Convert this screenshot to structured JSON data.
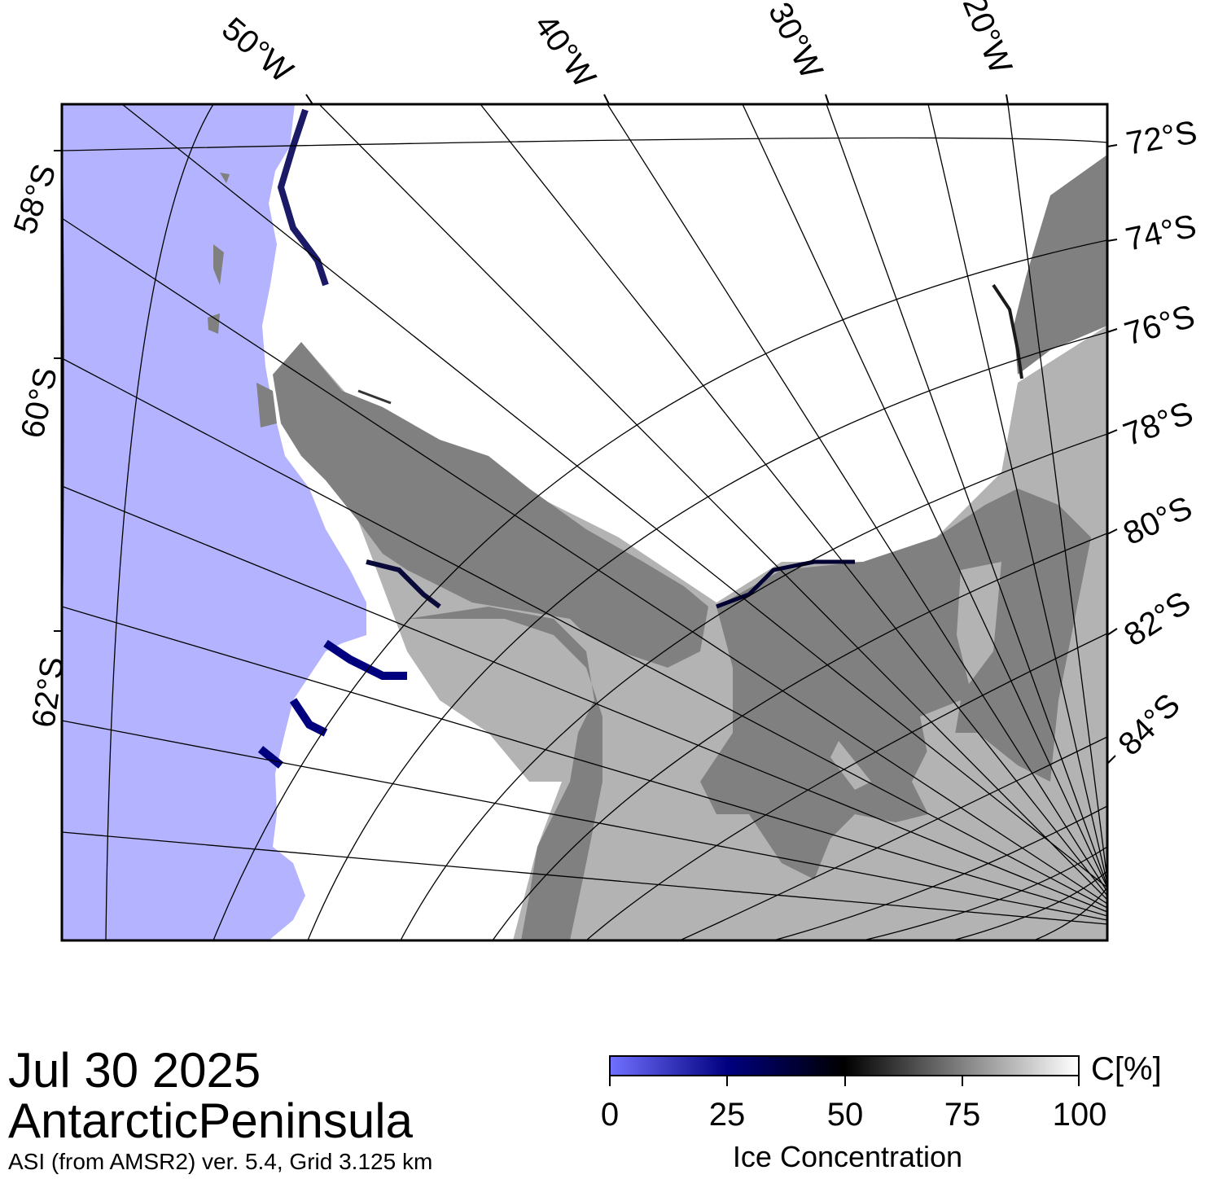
{
  "map": {
    "longitude_labels": [
      "50°W",
      "40°W",
      "30°W",
      "20°W"
    ],
    "latitude_labels_left": [
      "58°S",
      "60°S",
      "62°S"
    ],
    "latitude_labels_right": [
      "72°S",
      "74°S",
      "76°S",
      "78°S",
      "80°S",
      "82°S",
      "84°S"
    ],
    "colors": {
      "open_water": "#b3b3ff",
      "land": "#808080",
      "ice_shelf": "#b3b3b3",
      "sea_ice": "#ffffff",
      "graticule": "#000000"
    }
  },
  "info": {
    "date": "Jul 30 2025",
    "region": "AntarcticPeninsula",
    "product": "ASI (from AMSR2) ver. 5.4,  Grid 3.125 km"
  },
  "colorbar": {
    "title": "Ice Concentration",
    "unit": "C[%]",
    "min": 0,
    "max": 100,
    "ticks": [
      "0",
      "25",
      "50",
      "75",
      "100"
    ],
    "colors": [
      "#7070ff",
      "#00007f",
      "#000000",
      "#808080",
      "#ffffff"
    ]
  }
}
